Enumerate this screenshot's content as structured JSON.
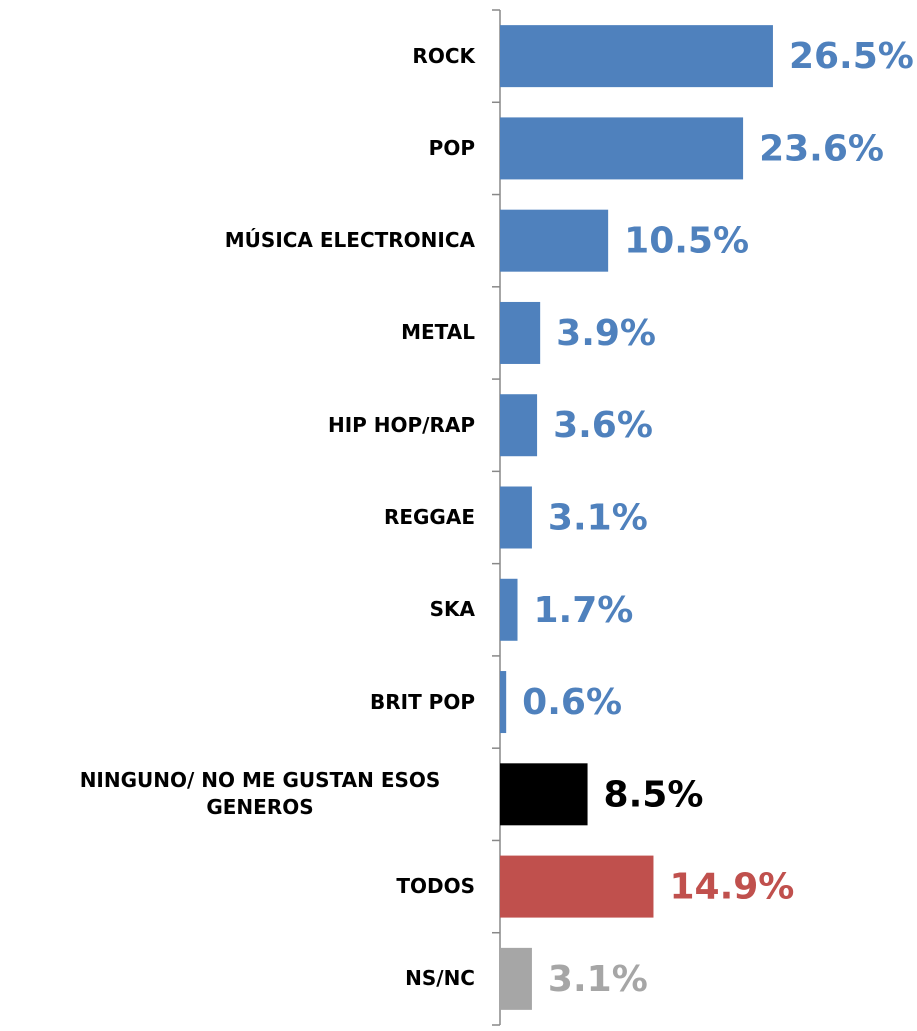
{
  "chart_data": {
    "type": "bar",
    "orientation": "horizontal",
    "categories": [
      "ROCK",
      "POP",
      "MÚSICA ELECTRONICA",
      "METAL",
      "HIP HOP/RAP",
      "REGGAE",
      "SKA",
      "BRIT POP",
      "NINGUNO/ NO ME GUSTAN ESOS GENEROS",
      "TODOS",
      "NS/NC"
    ],
    "values": [
      26.5,
      23.6,
      10.5,
      3.9,
      3.6,
      3.1,
      1.7,
      0.6,
      8.5,
      14.9,
      3.1
    ],
    "value_labels": [
      "26.5%",
      "23.6%",
      "10.5%",
      "3.9%",
      "3.6%",
      "3.1%",
      "1.7%",
      "0.6%",
      "8.5%",
      "14.9%",
      "3.1%"
    ],
    "colors": [
      "#4f81bd",
      "#4f81bd",
      "#4f81bd",
      "#4f81bd",
      "#4f81bd",
      "#4f81bd",
      "#4f81bd",
      "#4f81bd",
      "#000000",
      "#c0504d",
      "#a6a6a6"
    ],
    "xlim": [
      0,
      40
    ]
  }
}
